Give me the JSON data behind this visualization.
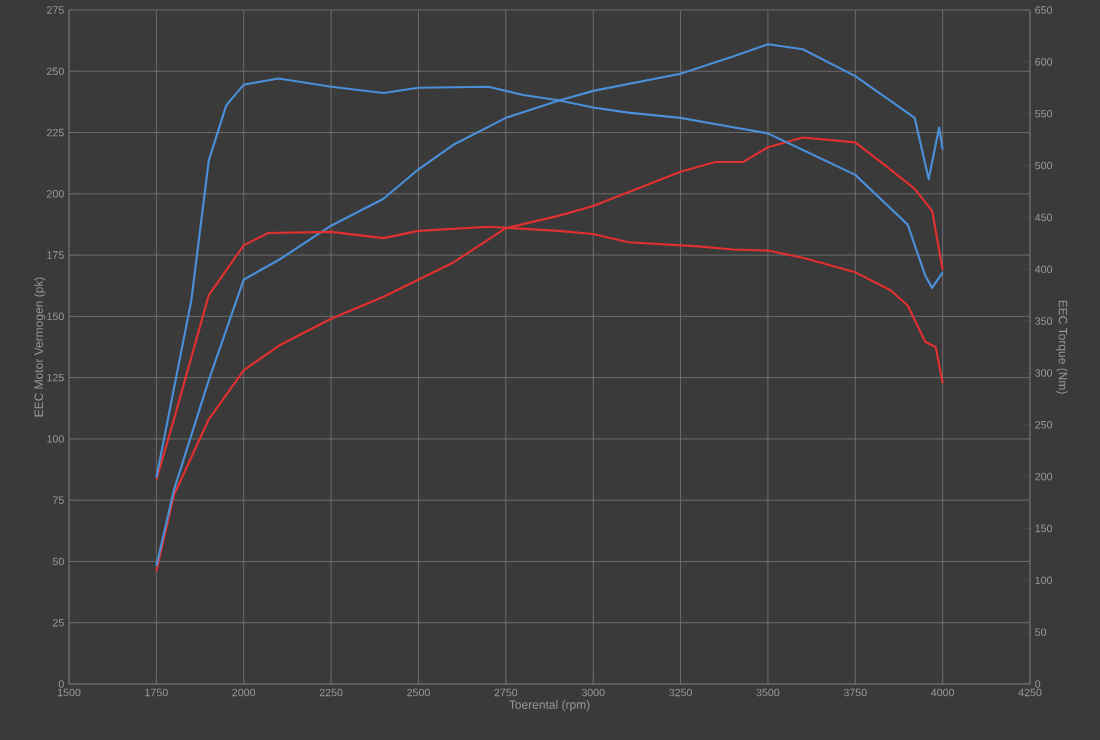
{
  "chart_data": {
    "type": "line",
    "xlabel": "Toerental (rpm)",
    "ylabel": "EEC Motor Vermogen (pk)",
    "y2label": "EEC Torque (Nm)",
    "xlim": [
      1500,
      4250
    ],
    "xticks": [
      1500,
      1750,
      2000,
      2250,
      2500,
      2750,
      3000,
      3250,
      3500,
      3750,
      4000,
      4250
    ],
    "ylim": [
      0,
      275
    ],
    "yticks": [
      0,
      25,
      50,
      75,
      100,
      125,
      150,
      175,
      200,
      225,
      250,
      275
    ],
    "y2lim": [
      0,
      650
    ],
    "y2ticks": [
      0,
      50,
      100,
      150,
      200,
      250,
      300,
      350,
      400,
      450,
      500,
      550,
      600,
      650
    ],
    "grid": true,
    "marker": "none",
    "line_style": "solid",
    "series": [
      {
        "color": "#e03030",
        "x": [
          1750,
          1800,
          1900,
          2000,
          2100,
          2250,
          2400,
          2600,
          2750,
          2900,
          3000,
          3250,
          3350,
          3430,
          3500,
          3600,
          3750,
          3850,
          3920,
          3970,
          4000
        ],
        "values": [
          46,
          77,
          108,
          128,
          138,
          149,
          158,
          172,
          186,
          191,
          195,
          209,
          213,
          213,
          219,
          223,
          221,
          210,
          202,
          193,
          169
        ]
      },
      {
        "color": "#e03030",
        "axis": "y2",
        "x": [
          1750,
          1800,
          1900,
          2000,
          2070,
          2250,
          2400,
          2500,
          2700,
          2900,
          3000,
          3100,
          3300,
          3400,
          3500,
          3600,
          3750,
          3850,
          3900,
          3950,
          3980,
          4000
        ],
        "values": [
          197,
          255,
          375,
          423,
          435,
          436,
          430,
          437,
          441,
          437,
          434,
          426,
          422,
          419,
          418,
          411,
          397,
          380,
          365,
          330,
          325,
          290
        ]
      },
      {
        "color": "#4a8fd8",
        "x": [
          1750,
          1800,
          1900,
          2000,
          2100,
          2250,
          2400,
          2500,
          2600,
          2750,
          2900,
          3000,
          3250,
          3400,
          3500,
          3600,
          3750,
          3850,
          3920,
          3960,
          3980,
          3990,
          4000
        ],
        "values": [
          48,
          79,
          124,
          165,
          173,
          187,
          198,
          210,
          220,
          231,
          238,
          242,
          249,
          256,
          261,
          259,
          248,
          238,
          231,
          206,
          220,
          227,
          218
        ]
      },
      {
        "color": "#4a8fd8",
        "axis": "y2",
        "x": [
          1750,
          1850,
          1900,
          1950,
          2000,
          2100,
          2250,
          2400,
          2500,
          2700,
          2800,
          2900,
          3000,
          3100,
          3250,
          3400,
          3500,
          3600,
          3750,
          3850,
          3900,
          3950,
          3970,
          4000
        ],
        "values": [
          199,
          370,
          505,
          558,
          578,
          584,
          576,
          570,
          575,
          576,
          568,
          563,
          556,
          551,
          546,
          537,
          531,
          515,
          491,
          459,
          443,
          394,
          382,
          397
        ]
      }
    ]
  }
}
